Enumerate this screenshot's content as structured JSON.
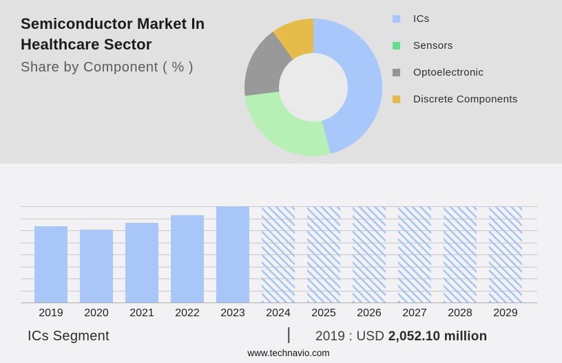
{
  "header": {
    "title_line1": "Semiconductor Market In",
    "title_line2": "Healthcare Sector",
    "subtitle": "Share by Component ( % )"
  },
  "legend": {
    "items": [
      {
        "label": "ICs",
        "color": "#a8c7fa"
      },
      {
        "label": "Sensors",
        "color": "#63df8b"
      },
      {
        "label": "Optoelectronic",
        "color": "#949494"
      },
      {
        "label": "Discrete Components",
        "color": "#e2bb45"
      }
    ]
  },
  "footer": {
    "segment_label": "ICs Segment",
    "separator": "|",
    "value_prefix": "2019 : USD",
    "value_bold": "2,052.10 million",
    "website": "www.technavio.com"
  },
  "colors": {
    "top_panel_bg": "#e1e1e1",
    "bottom_panel_bg": "#f2f2f4",
    "donut_hole": "#eaeaea",
    "gridline": "#c8c8cb",
    "baseline": "#ababab"
  },
  "chart_data": [
    {
      "type": "pie",
      "donut": true,
      "title": "Semiconductor Market In Healthcare Sector — Share by Component ( % )",
      "legend_position": "right",
      "slices": [
        {
          "label": "ICs",
          "value_pct": 46,
          "color": "#a8c7fa"
        },
        {
          "label": "Sensors",
          "value_pct": 27,
          "color": "#b7f0b4"
        },
        {
          "label": "Optoelectronic",
          "value_pct": 17,
          "color": "#999999"
        },
        {
          "label": "Discrete Components",
          "value_pct": 10,
          "color": "#e5bb4a"
        }
      ]
    },
    {
      "type": "bar",
      "title": "ICs Segment",
      "categories": [
        "2019",
        "2020",
        "2021",
        "2022",
        "2023",
        "2024",
        "2025",
        "2026",
        "2027",
        "2028",
        "2029"
      ],
      "values_pct_of_plot": [
        79,
        76,
        83,
        91,
        100,
        100,
        100,
        100,
        100,
        100,
        100
      ],
      "historical_years": [
        "2019",
        "2020",
        "2021",
        "2022",
        "2023"
      ],
      "forecast_years_hatched": [
        "2024",
        "2025",
        "2026",
        "2027",
        "2028",
        "2029"
      ],
      "known_value": {
        "year": "2019",
        "label": "2019 : USD 2,052.10 million",
        "value_usd_million": 2052.1
      },
      "bar_color": "#a8c7f8",
      "hatch_color": "#a5c4f6",
      "grid": true,
      "gridline_count": 9,
      "y_axis_labels_shown": false
    }
  ]
}
